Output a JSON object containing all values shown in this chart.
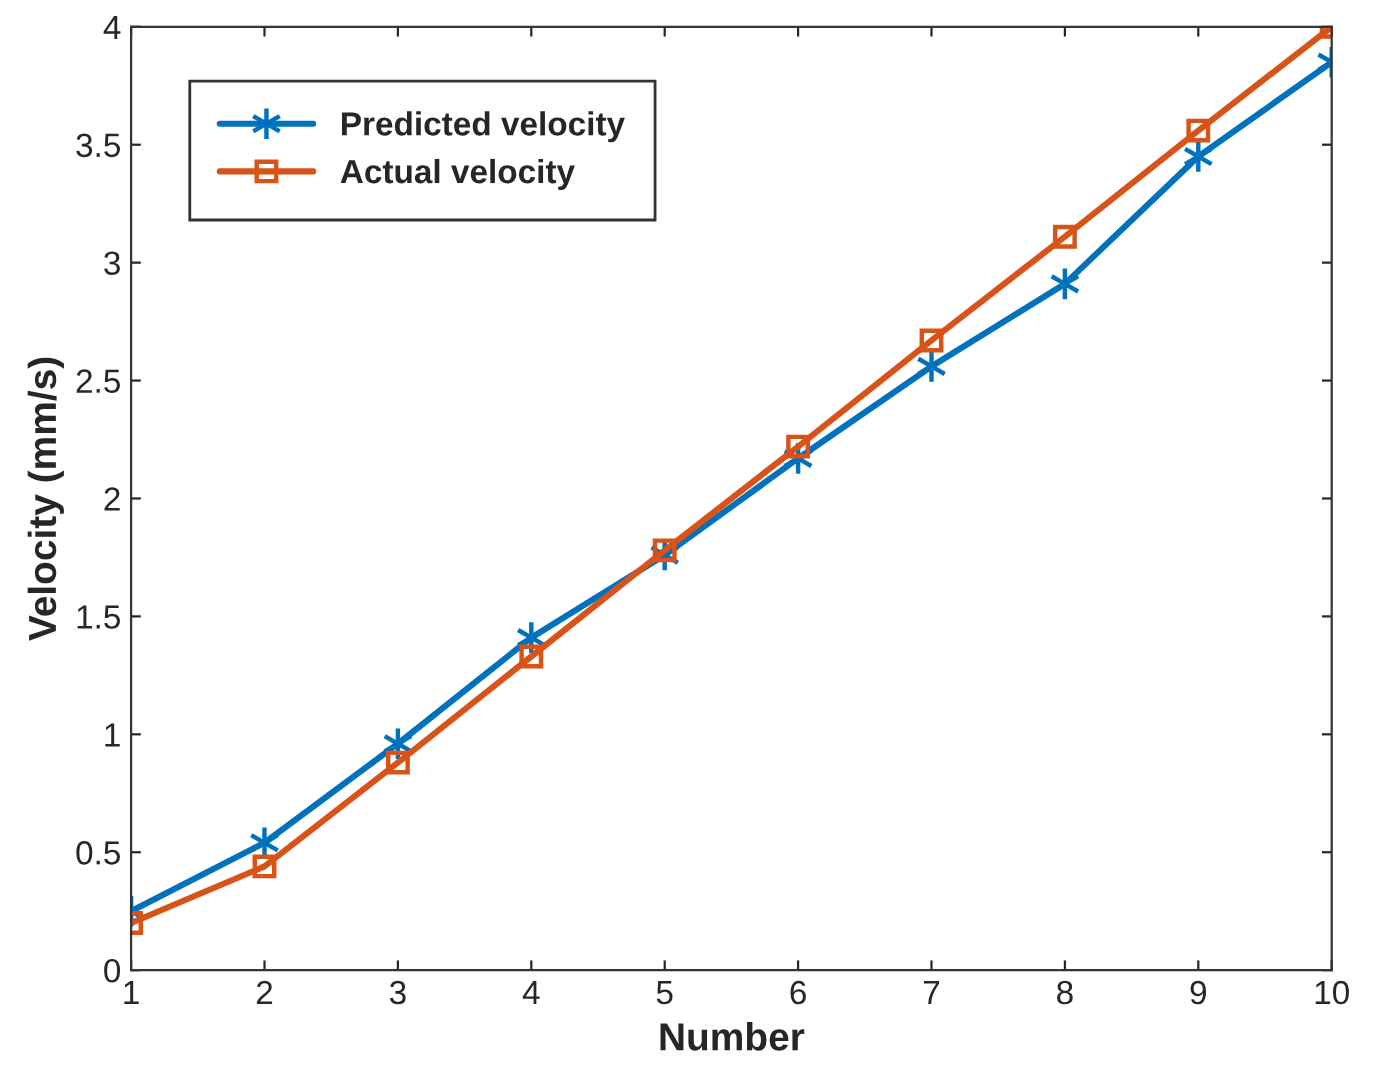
{
  "chart_data": {
    "type": "line",
    "xlabel": "Number",
    "ylabel": "Velocity (mm/s)",
    "x": [
      1,
      2,
      3,
      4,
      5,
      6,
      7,
      8,
      9,
      10
    ],
    "series": [
      {
        "name": "Predicted velocity",
        "color": "#0072bd",
        "marker": "cross",
        "values": [
          0.25,
          0.54,
          0.96,
          1.41,
          1.76,
          2.17,
          2.56,
          2.91,
          3.45,
          3.85
        ]
      },
      {
        "name": "Actual velocity",
        "color": "#d95319",
        "marker": "square",
        "values": [
          0.2,
          0.44,
          0.88,
          1.33,
          1.78,
          2.22,
          2.67,
          3.11,
          3.56,
          4.0
        ]
      }
    ],
    "xlim": [
      1,
      10
    ],
    "xticks": [
      1,
      2,
      3,
      4,
      5,
      6,
      7,
      8,
      9,
      10
    ],
    "ylim": [
      0,
      4
    ],
    "yticks": [
      0,
      0.5,
      1,
      1.5,
      2,
      2.5,
      3,
      3.5,
      4
    ],
    "grid": false,
    "legend": "top left",
    "line_style": "solid"
  }
}
